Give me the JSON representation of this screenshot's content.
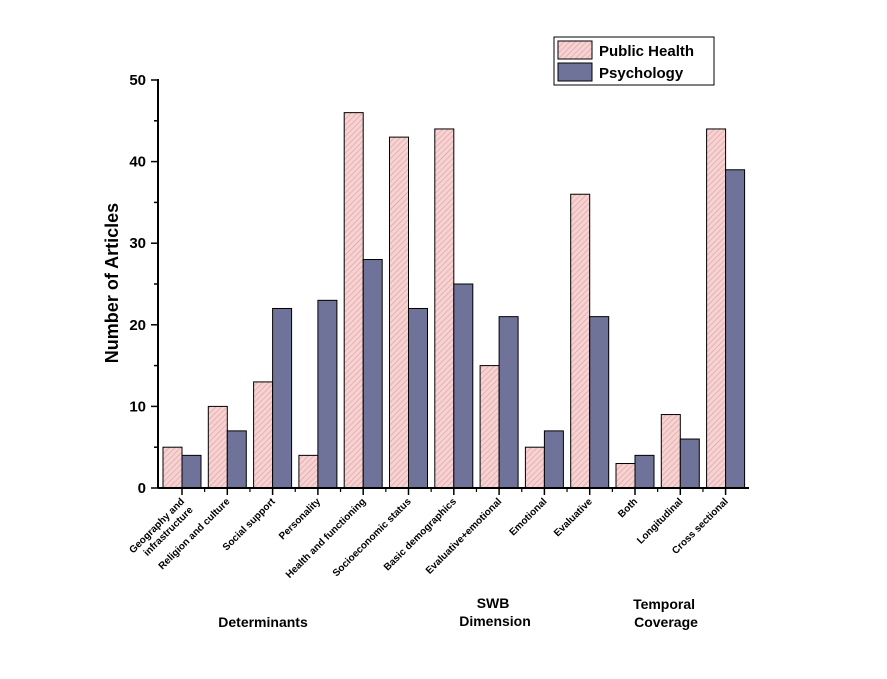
{
  "chart_data": {
    "type": "bar",
    "ylabel": "Number of Articles",
    "ylim": [
      0,
      50
    ],
    "yticks": [
      0,
      10,
      20,
      30,
      40,
      50
    ],
    "categories": [
      "Geography and infrastructure",
      "Religion and culture",
      "Social support",
      "Personality",
      "Health and functioning",
      "Socioeconomic status",
      "Basic demographics",
      "Evaluative+emotional",
      "Emotional",
      "Evaluative",
      "Both",
      "Longitudinal",
      "Cross sectional"
    ],
    "series": [
      {
        "name": "Public Health",
        "values": [
          5,
          10,
          13,
          4,
          46,
          43,
          44,
          15,
          5,
          36,
          3,
          9,
          44
        ]
      },
      {
        "name": "Psychology",
        "values": [
          4,
          7,
          22,
          23,
          28,
          22,
          25,
          21,
          7,
          21,
          4,
          6,
          39
        ]
      }
    ],
    "groups": [
      {
        "label": "Determinants"
      },
      {
        "label": "SWB Dimension"
      },
      {
        "label": "Temporal Coverage"
      }
    ],
    "legend_position": "top-right",
    "grid": false
  },
  "colors": {
    "public_health": "#f3c4c4",
    "psychology": "#6f739a",
    "axis": "#000000"
  }
}
